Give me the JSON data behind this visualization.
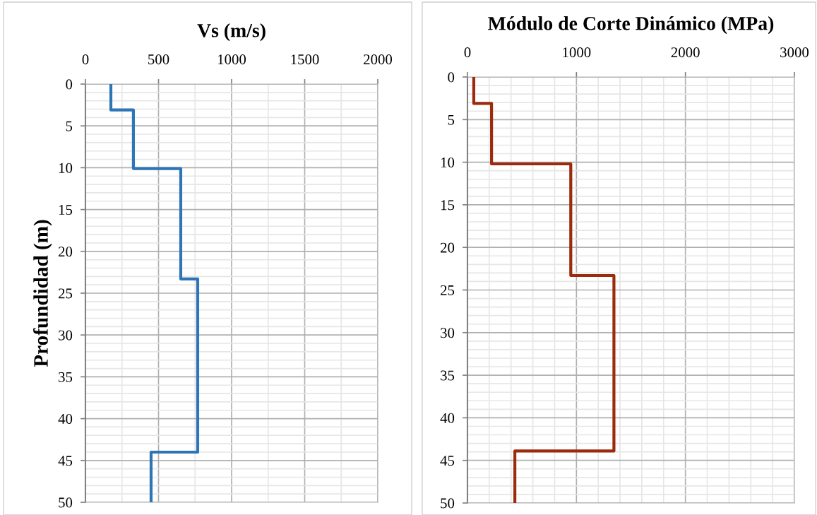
{
  "chart_data": [
    {
      "type": "line",
      "title": "Vs (m/s)",
      "ylabel": "Profundidad (m)",
      "series": [
        {
          "color": "#2e75b6",
          "x": [
            174,
            174,
            328,
            328,
            652,
            652,
            768,
            768,
            449,
            449
          ],
          "values": [
            0,
            3.1,
            3.1,
            10.1,
            10.1,
            23.3,
            23.3,
            44,
            44,
            50
          ]
        }
      ],
      "xlim": [
        0,
        2000
      ],
      "xticks": [
        0,
        500,
        1000,
        1500,
        2000
      ],
      "ylim": [
        50,
        0
      ],
      "yticks": [
        0,
        5,
        10,
        15,
        20,
        25,
        30,
        35,
        40,
        45,
        50
      ],
      "grid": true,
      "marker": "none",
      "line_style": "solid"
    },
    {
      "type": "line",
      "title": "Módulo de Corte Dinámico (MPa)",
      "series": [
        {
          "color": "#9c2a0c",
          "x": [
            58,
            58,
            221,
            221,
            948,
            948,
            1344,
            1344,
            435,
            435
          ],
          "values": [
            0,
            3.1,
            3.1,
            10.2,
            10.2,
            23.3,
            23.3,
            43.9,
            43.9,
            50
          ]
        }
      ],
      "xlim": [
        0,
        3000
      ],
      "xticks": [
        0,
        1000,
        2000,
        3000
      ],
      "ylim": [
        50,
        0
      ],
      "yticks": [
        0,
        5,
        10,
        15,
        20,
        25,
        30,
        35,
        40,
        45,
        50
      ],
      "grid": true,
      "marker": "none",
      "line_style": "solid"
    }
  ]
}
